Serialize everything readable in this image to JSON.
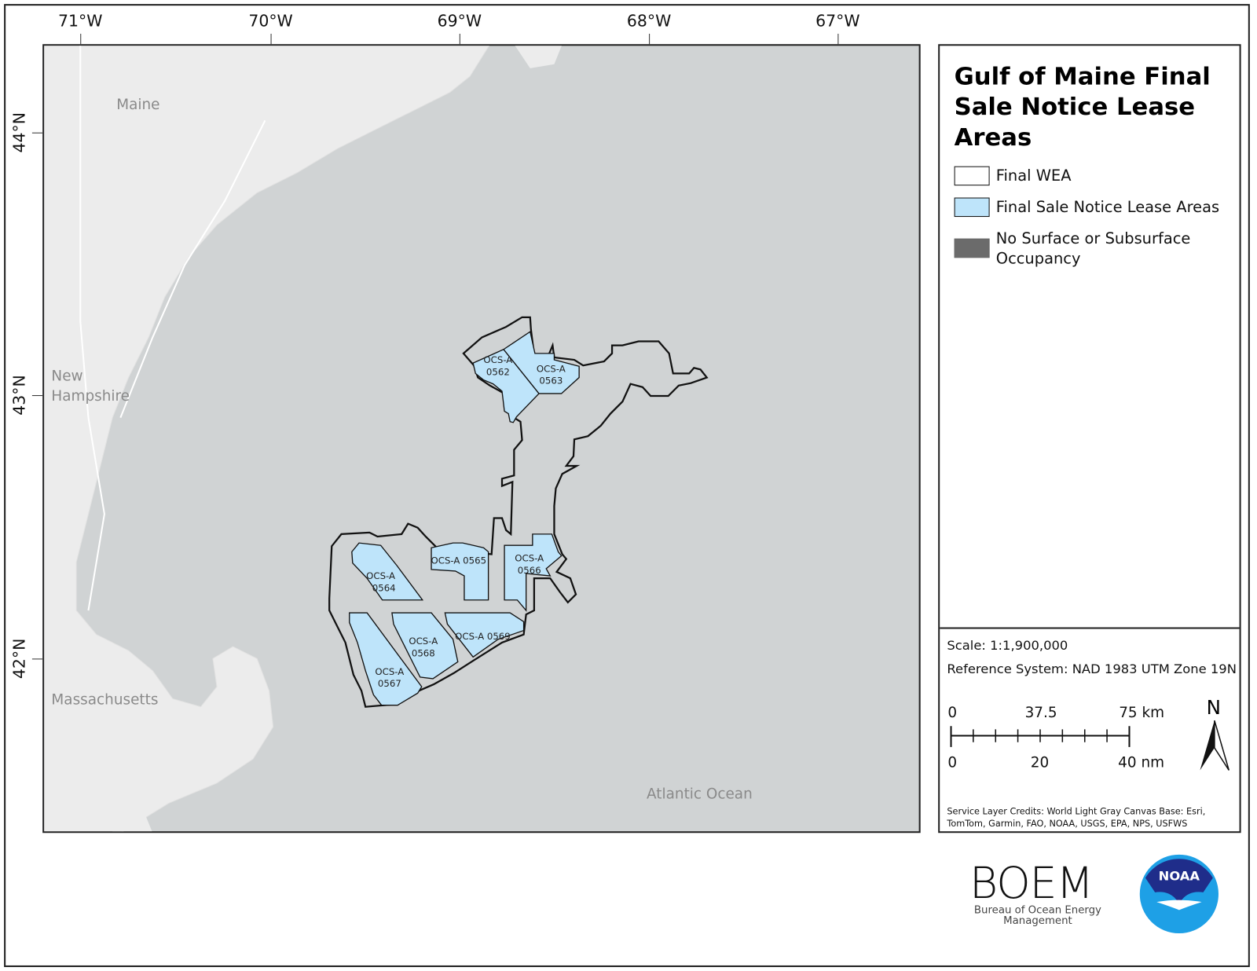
{
  "title": "Gulf of Maine Final Sale Notice Lease Areas",
  "graticule": {
    "longitudes": [
      "71°W",
      "70°W",
      "69°W",
      "68°W",
      "67°W"
    ],
    "latitudes": [
      "44°N",
      "43°N",
      "42°N"
    ]
  },
  "place_labels": {
    "maine": "Maine",
    "new_hampshire_1": "New",
    "new_hampshire_2": "Hampshire",
    "massachusetts": "Massachusetts",
    "atlantic": "Atlantic Ocean"
  },
  "lease_areas": [
    {
      "id1": "OCS-A",
      "id2": "0562"
    },
    {
      "id1": "OCS-A",
      "id2": "0563"
    },
    {
      "id1": "OCS-A",
      "id2": "0564"
    },
    {
      "id1": "OCS-A 0565",
      "id2": ""
    },
    {
      "id1": "OCS-A",
      "id2": "0566"
    },
    {
      "id1": "OCS-A",
      "id2": "0567"
    },
    {
      "id1": "OCS-A",
      "id2": "0568"
    },
    {
      "id1": "OCS-A 0569",
      "id2": ""
    }
  ],
  "legend": {
    "items": [
      {
        "label": "Final WEA",
        "color": "#ffffff"
      },
      {
        "label": "Final Sale Notice Lease Areas",
        "color": "#bee4fa"
      },
      {
        "label": "No Surface or Subsurface Occupancy",
        "color": "#6b6b6b"
      }
    ]
  },
  "info": {
    "scale": "Scale: 1:1,900,000",
    "reference": "Reference System: NAD 1983 UTM Zone 19N",
    "km_labels": [
      "0",
      "37.5",
      "75 km"
    ],
    "nm_labels": [
      "0",
      "20",
      "40 nm"
    ],
    "north": "N",
    "credits": "Service Layer Credits: World Light Gray Canvas Base: Esri, TomTom, Garmin, FAO, NOAA, USGS, EPA, NPS, USFWS"
  },
  "logos": {
    "boem": "BOEM",
    "boem_sub": "Bureau of Ocean Energy Management",
    "noaa": "NOAA"
  },
  "colors": {
    "water": "#d0d3d4",
    "land": "#ececec",
    "lease": "#bee4fa",
    "outline": "#111111"
  }
}
